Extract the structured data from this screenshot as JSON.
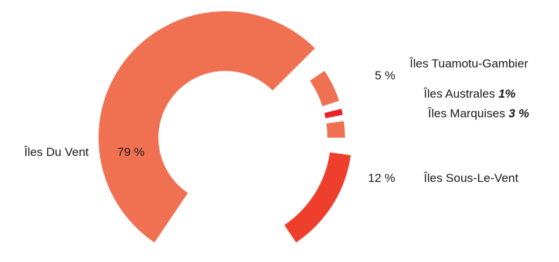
{
  "chart_data": {
    "type": "pie",
    "style": "donut-exploded",
    "slices": [
      {
        "label": "Îles Du Vent",
        "value": 79,
        "value_label": "79 %",
        "color": "#f07152"
      },
      {
        "label": "Îles Tuamotu-Gambier",
        "value": 5,
        "value_label": "5 %",
        "color": "#f07152"
      },
      {
        "label": "Îles Australes",
        "value": 1,
        "value_label": "1%",
        "color": "#e8232a"
      },
      {
        "label": "Îles Marquises",
        "value": 3,
        "value_label": "3 %",
        "color": "#f07152"
      },
      {
        "label": "Îles Sous-Le-Vent",
        "value": 12,
        "value_label": "12 %",
        "color": "#ee3f2c"
      }
    ]
  }
}
